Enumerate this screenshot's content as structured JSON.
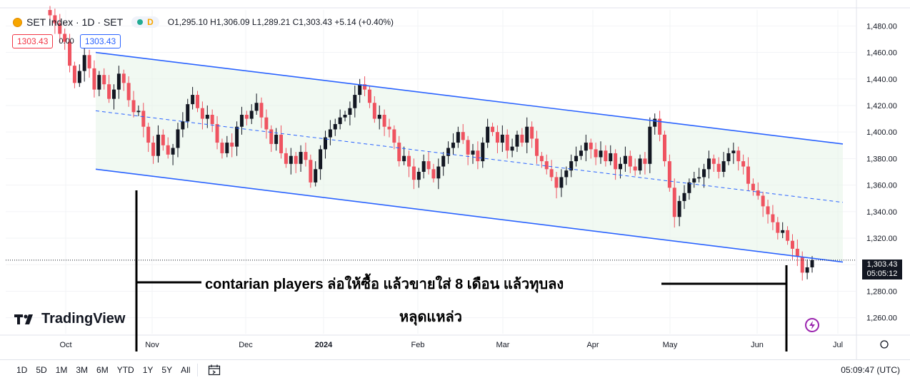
{
  "legend": {
    "symbol": "SET Index · 1D · SET",
    "badge": "D",
    "ohlc": "O1,295.10 H1,306.09 L1,289.21 C1,303.43 +5.14 (+0.40%)"
  },
  "price_boxes": {
    "sell": "1303.43",
    "spread": "0.00",
    "buy": "1303.43"
  },
  "logo_text": "TradingView",
  "last_price": {
    "value": "1,303.43",
    "countdown": "05:05:12"
  },
  "annotation": {
    "line1": "contarian players ล่อให้ซื้อ แล้วขายใส่  8 เดือน แล้วทุบลง",
    "line2": "หลุดแหล่ว"
  },
  "bottom_bar": {
    "ranges": [
      "1D",
      "5D",
      "1M",
      "3M",
      "6M",
      "YTD",
      "1Y",
      "5Y",
      "All"
    ],
    "clock": "05:09:47 (UTC)"
  },
  "colors": {
    "up": "#131722",
    "down": "#ef5360",
    "channel": "#2962ff",
    "channel_fill": "#e8f5e9"
  },
  "chart_data": {
    "type": "candlestick",
    "title": "SET Index · 1D · SET",
    "x_tick_labels": [
      "Oct",
      "Nov",
      "Dec",
      "2024",
      "Feb",
      "Mar",
      "Apr",
      "May",
      "Jun",
      "Jul"
    ],
    "y_ticks": [
      1260,
      1280,
      1300,
      1320,
      1340,
      1360,
      1380,
      1400,
      1420,
      1440,
      1460,
      1480
    ],
    "y_tick_labels": [
      "1,260.00",
      "1,280.00",
      "1,300.00",
      "1,320.00",
      "1,340.00",
      "1,360.00",
      "1,380.00",
      "1,400.00",
      "1,420.00",
      "1,440.00",
      "1,460.00",
      "1,480.00"
    ],
    "ylim": [
      1248,
      1492
    ],
    "last_close": 1303.43,
    "channel": {
      "upper": [
        [
          1460,
          1391
        ]
      ],
      "lower": [
        [
          1372,
          1302
        ]
      ],
      "mid": [
        [
          1416,
          1347
        ]
      ]
    },
    "closes": [
      1488,
      1482,
      1474,
      1468,
      1450,
      1437,
      1446,
      1458,
      1448,
      1432,
      1443,
      1436,
      1425,
      1432,
      1444,
      1437,
      1424,
      1415,
      1416,
      1404,
      1392,
      1382,
      1398,
      1390,
      1383,
      1388,
      1402,
      1408,
      1421,
      1428,
      1418,
      1410,
      1413,
      1406,
      1392,
      1384,
      1392,
      1389,
      1404,
      1413,
      1410,
      1416,
      1422,
      1411,
      1402,
      1391,
      1398,
      1384,
      1376,
      1382,
      1376,
      1385,
      1379,
      1362,
      1372,
      1387,
      1396,
      1402,
      1406,
      1411,
      1413,
      1418,
      1428,
      1436,
      1432,
      1422,
      1410,
      1413,
      1404,
      1402,
      1392,
      1378,
      1382,
      1374,
      1364,
      1370,
      1378,
      1372,
      1365,
      1374,
      1382,
      1388,
      1392,
      1400,
      1394,
      1383,
      1386,
      1378,
      1392,
      1404,
      1400,
      1392,
      1398,
      1386,
      1389,
      1398,
      1392,
      1404,
      1395,
      1382,
      1378,
      1372,
      1366,
      1358,
      1366,
      1371,
      1378,
      1382,
      1386,
      1392,
      1387,
      1381,
      1386,
      1378,
      1384,
      1372,
      1376,
      1382,
      1374,
      1371,
      1380,
      1376,
      1404,
      1410,
      1398,
      1378,
      1358,
      1336,
      1348,
      1354,
      1362,
      1365,
      1366,
      1372,
      1380,
      1376,
      1370,
      1378,
      1384,
      1386,
      1378,
      1374,
      1361,
      1356,
      1352,
      1344,
      1338,
      1332,
      1324,
      1326,
      1318,
      1312,
      1306,
      1294,
      1298,
      1303.43
    ]
  }
}
